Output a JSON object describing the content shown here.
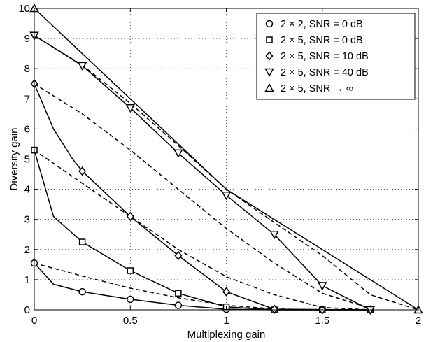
{
  "chart_data": {
    "type": "line",
    "title": "",
    "xlabel": "Multiplexing gain",
    "ylabel": "Diversity gain",
    "xlim": [
      0,
      2
    ],
    "ylim": [
      0,
      10
    ],
    "x_ticks": [
      "0",
      "0.5",
      "1",
      "1.5",
      "2"
    ],
    "y_ticks": [
      "0",
      "1",
      "2",
      "3",
      "4",
      "5",
      "6",
      "7",
      "8",
      "9",
      "10"
    ],
    "grid": "dotted",
    "legend_position": "top-right",
    "series": [
      {
        "name": "2 × 2, SNR = 0 dB",
        "marker": "circle",
        "marked_points": [
          [
            0,
            1.55
          ],
          [
            0.25,
            0.6
          ],
          [
            0.5,
            0.35
          ],
          [
            0.75,
            0.15
          ],
          [
            1,
            0.02
          ],
          [
            1.25,
            0
          ],
          [
            1.5,
            0
          ],
          [
            1.75,
            0
          ]
        ],
        "solid_curve": [
          [
            0,
            1.55
          ],
          [
            0.1,
            0.85
          ],
          [
            0.25,
            0.6
          ],
          [
            0.5,
            0.35
          ],
          [
            0.75,
            0.15
          ],
          [
            1,
            0.02
          ],
          [
            1.25,
            0
          ],
          [
            1.75,
            0
          ]
        ],
        "dashed_curve": [
          [
            0,
            1.55
          ],
          [
            0.25,
            1.12
          ],
          [
            0.5,
            0.72
          ],
          [
            0.75,
            0.4
          ],
          [
            1,
            0.15
          ],
          [
            1.25,
            0.03
          ],
          [
            1.5,
            0
          ],
          [
            1.75,
            0
          ]
        ]
      },
      {
        "name": "2 × 5, SNR = 0 dB",
        "marker": "square",
        "marked_points": [
          [
            0,
            5.3
          ],
          [
            0.25,
            2.25
          ],
          [
            0.5,
            1.3
          ],
          [
            0.75,
            0.55
          ],
          [
            1,
            0.1
          ],
          [
            1.25,
            0
          ],
          [
            1.5,
            0
          ],
          [
            1.75,
            0
          ]
        ],
        "solid_curve": [
          [
            0,
            5.3
          ],
          [
            0.1,
            3.1
          ],
          [
            0.25,
            2.25
          ],
          [
            0.5,
            1.3
          ],
          [
            0.75,
            0.55
          ],
          [
            1,
            0.1
          ],
          [
            1.25,
            0
          ],
          [
            1.75,
            0
          ]
        ],
        "dashed_curve": [
          [
            0,
            5.3
          ],
          [
            0.25,
            4.2
          ],
          [
            0.5,
            3.1
          ],
          [
            0.75,
            2.0
          ],
          [
            1,
            1.1
          ],
          [
            1.25,
            0.5
          ],
          [
            1.5,
            0.08
          ],
          [
            1.75,
            0
          ]
        ]
      },
      {
        "name": "2 × 5, SNR = 10 dB",
        "marker": "diamond",
        "marked_points": [
          [
            0,
            7.5
          ],
          [
            0.25,
            4.6
          ],
          [
            0.5,
            3.1
          ],
          [
            0.75,
            1.8
          ],
          [
            1,
            0.6
          ],
          [
            1.25,
            0.02
          ],
          [
            1.5,
            0
          ],
          [
            1.75,
            0
          ]
        ],
        "solid_curve": [
          [
            0,
            7.5
          ],
          [
            0.1,
            6.0
          ],
          [
            0.2,
            5.0
          ],
          [
            0.25,
            4.6
          ],
          [
            0.5,
            3.1
          ],
          [
            0.75,
            1.8
          ],
          [
            1,
            0.6
          ],
          [
            1.25,
            0.02
          ],
          [
            1.75,
            0
          ]
        ],
        "dashed_curve": [
          [
            0,
            7.5
          ],
          [
            0.25,
            6.5
          ],
          [
            0.5,
            5.3
          ],
          [
            0.75,
            4.0
          ],
          [
            1,
            2.7
          ],
          [
            1.25,
            1.55
          ],
          [
            1.5,
            0.55
          ],
          [
            1.75,
            0.05
          ]
        ]
      },
      {
        "name": "2 × 5, SNR = 40 dB",
        "marker": "triangle-down",
        "marked_points": [
          [
            0,
            9.1
          ],
          [
            0.25,
            8.1
          ],
          [
            0.5,
            6.7
          ],
          [
            0.75,
            5.2
          ],
          [
            1,
            3.8
          ],
          [
            1.25,
            2.5
          ],
          [
            1.5,
            0.8
          ],
          [
            1.75,
            0
          ]
        ],
        "solid_curve": [
          [
            0,
            9.1
          ],
          [
            0.25,
            8.1
          ],
          [
            0.5,
            6.7
          ],
          [
            0.75,
            5.2
          ],
          [
            1,
            3.8
          ],
          [
            1.25,
            2.5
          ],
          [
            1.5,
            0.8
          ],
          [
            1.75,
            0
          ]
        ],
        "dashed_curve": [
          [
            0,
            9.1
          ],
          [
            0.25,
            8.12
          ],
          [
            0.5,
            6.85
          ],
          [
            0.75,
            5.45
          ],
          [
            1,
            4.0
          ],
          [
            1.25,
            2.9
          ],
          [
            1.5,
            1.8
          ],
          [
            1.75,
            0.5
          ],
          [
            2,
            0
          ]
        ]
      },
      {
        "name": "2 × 5, SNR → ∞",
        "marker": "triangle-up",
        "marked_points": [
          [
            0,
            10
          ],
          [
            2,
            0
          ]
        ],
        "solid_curve": [
          [
            0,
            10
          ],
          [
            1,
            4
          ],
          [
            2,
            0
          ]
        ],
        "dashed_curve": []
      }
    ]
  }
}
